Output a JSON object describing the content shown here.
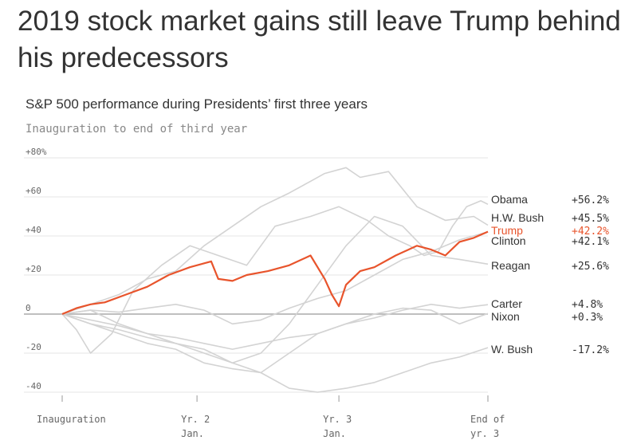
{
  "headline": "2019 stock market gains still leave Trump behind his predecessors",
  "chart_data": {
    "type": "line",
    "title": "S&P 500 performance during Presidents’ first three years",
    "subtitle": "Inauguration to end of third year",
    "ylim": [
      -45,
      80
    ],
    "y_ticks": [
      {
        "value": 80,
        "label": "+80%"
      },
      {
        "value": 60,
        "label": "+60"
      },
      {
        "value": 40,
        "label": "+40"
      },
      {
        "value": 20,
        "label": "+20"
      },
      {
        "value": 0,
        "label": "0"
      },
      {
        "value": -20,
        "label": "-20"
      },
      {
        "value": -40,
        "label": "-40"
      }
    ],
    "x_ticks": [
      {
        "value": 0,
        "label": "Inauguration"
      },
      {
        "value": 0.95,
        "label": "Yr. 2\nJan."
      },
      {
        "value": 1.95,
        "label": "Yr. 3\nJan."
      },
      {
        "value": 3,
        "label": "End of\nyr. 3"
      }
    ],
    "grid": true,
    "highlight_color": "#e8542c",
    "muted_color": "#d3d3d3",
    "series": [
      {
        "name": "Obama",
        "final_label": "+56.2%",
        "highlight": false,
        "x": [
          0,
          0.1,
          0.2,
          0.35,
          0.5,
          0.7,
          0.9,
          1.1,
          1.3,
          1.5,
          1.75,
          1.95,
          2.15,
          2.3,
          2.45,
          2.55,
          2.65,
          2.75,
          2.85,
          2.95,
          3
        ],
        "y": [
          0,
          -8,
          -20,
          -10,
          12,
          25,
          35,
          30,
          25,
          45,
          50,
          55,
          48,
          40,
          35,
          30,
          32,
          45,
          55,
          58,
          56.2
        ]
      },
      {
        "name": "H.W. Bush",
        "final_label": "+45.5%",
        "highlight": false,
        "x": [
          0,
          0.2,
          0.4,
          0.6,
          0.8,
          1.0,
          1.2,
          1.4,
          1.6,
          1.75,
          1.85,
          2.0,
          2.1,
          2.3,
          2.5,
          2.7,
          2.9,
          3
        ],
        "y": [
          0,
          5,
          10,
          18,
          22,
          35,
          45,
          55,
          62,
          68,
          72,
          75,
          70,
          73,
          55,
          48,
          50,
          45.5
        ]
      },
      {
        "name": "Trump",
        "final_label": "+42.2%",
        "highlight": true,
        "x": [
          0,
          0.1,
          0.2,
          0.3,
          0.45,
          0.6,
          0.75,
          0.9,
          1.05,
          1.1,
          1.2,
          1.3,
          1.45,
          1.6,
          1.75,
          1.85,
          1.9,
          1.95,
          2.0,
          2.1,
          2.2,
          2.35,
          2.5,
          2.6,
          2.7,
          2.8,
          2.9,
          3
        ],
        "y": [
          0,
          3,
          5,
          6,
          10,
          14,
          20,
          24,
          27,
          18,
          17,
          20,
          22,
          25,
          30,
          18,
          10,
          4,
          15,
          22,
          24,
          30,
          35,
          33,
          30,
          37,
          39,
          42.2
        ]
      },
      {
        "name": "Clinton",
        "final_label": "+42.1%",
        "highlight": false,
        "x": [
          0,
          0.2,
          0.4,
          0.6,
          0.8,
          1.0,
          1.2,
          1.4,
          1.6,
          1.8,
          2.0,
          2.2,
          2.4,
          2.6,
          2.8,
          3
        ],
        "y": [
          0,
          2,
          1,
          3,
          5,
          2,
          -5,
          -3,
          3,
          8,
          12,
          20,
          28,
          32,
          38,
          42.1
        ]
      },
      {
        "name": "Reagan",
        "final_label": "+25.6%",
        "highlight": false,
        "x": [
          0,
          0.2,
          0.4,
          0.6,
          0.8,
          1.0,
          1.2,
          1.4,
          1.6,
          1.8,
          2.0,
          2.2,
          2.4,
          2.6,
          2.8,
          3
        ],
        "y": [
          0,
          -5,
          -8,
          -12,
          -15,
          -18,
          -25,
          -20,
          -5,
          15,
          35,
          50,
          45,
          30,
          28,
          25.6
        ]
      },
      {
        "name": "Carter",
        "final_label": "+4.8%",
        "highlight": false,
        "x": [
          0,
          0.2,
          0.4,
          0.6,
          0.8,
          1.0,
          1.2,
          1.4,
          1.6,
          1.8,
          2.0,
          2.2,
          2.4,
          2.6,
          2.8,
          3
        ],
        "y": [
          0,
          -3,
          -6,
          -10,
          -12,
          -15,
          -18,
          -15,
          -12,
          -10,
          -5,
          -2,
          2,
          5,
          3,
          4.8
        ]
      },
      {
        "name": "Nixon",
        "final_label": "+0.3%",
        "highlight": false,
        "x": [
          0,
          0.2,
          0.4,
          0.6,
          0.8,
          1.0,
          1.2,
          1.4,
          1.6,
          1.8,
          2.0,
          2.2,
          2.4,
          2.6,
          2.8,
          3
        ],
        "y": [
          0,
          2,
          -5,
          -10,
          -15,
          -20,
          -25,
          -30,
          -20,
          -10,
          -5,
          0,
          3,
          2,
          -5,
          0.3
        ]
      },
      {
        "name": "W. Bush",
        "final_label": "-17.2%",
        "highlight": false,
        "x": [
          0,
          0.2,
          0.4,
          0.6,
          0.8,
          1.0,
          1.2,
          1.4,
          1.6,
          1.8,
          2.0,
          2.2,
          2.4,
          2.6,
          2.8,
          3
        ],
        "y": [
          0,
          -5,
          -10,
          -15,
          -18,
          -25,
          -28,
          -30,
          -38,
          -40,
          -38,
          -35,
          -30,
          -25,
          -22,
          -17.2
        ]
      }
    ]
  }
}
